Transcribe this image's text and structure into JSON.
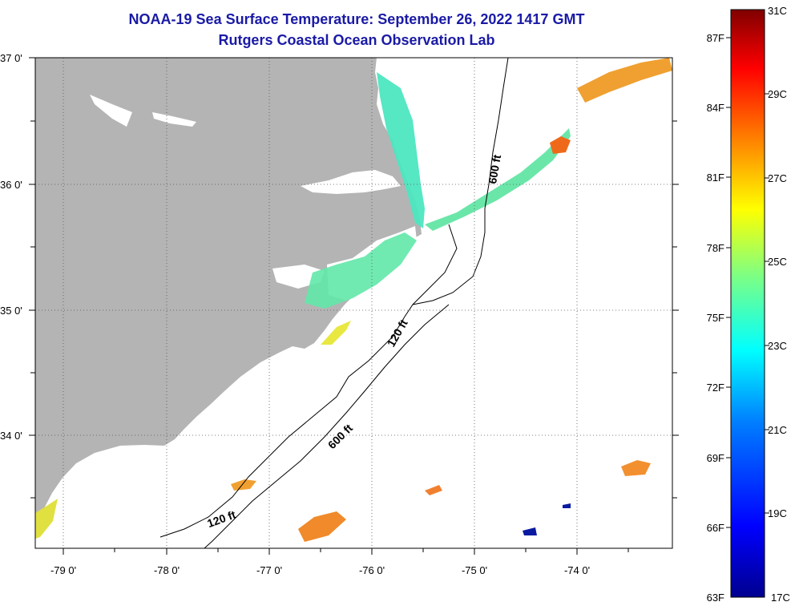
{
  "title": {
    "line1": "NOAA-19 Sea Surface Temperature:  September 26, 2022 1417 GMT",
    "line2": "Rutgers Coastal Ocean Observation Lab"
  },
  "map": {
    "lat_labels": [
      "37 0'",
      "36 0'",
      "35 0'",
      "34 0'"
    ],
    "lon_labels": [
      "-79 0'",
      "-78 0'",
      "-77 0'",
      "-76 0'",
      "-75 0'",
      "-74 0'"
    ],
    "contour_labels": {
      "c600_north": "600 ft",
      "c120_mid": "120 ft",
      "c600_south": "600 ft",
      "c120_south": "120 ft"
    },
    "colors": {
      "land": "#b4b4b4",
      "water": "#ffffff",
      "title": "#1a1aa6"
    }
  },
  "colorbar": {
    "fahrenheit": [
      "87F",
      "84F",
      "81F",
      "78F",
      "75F",
      "72F",
      "69F",
      "66F",
      "63F"
    ],
    "celsius": [
      "31C",
      "29C",
      "27C",
      "25C",
      "23C",
      "21C",
      "19C",
      "17C"
    ]
  }
}
